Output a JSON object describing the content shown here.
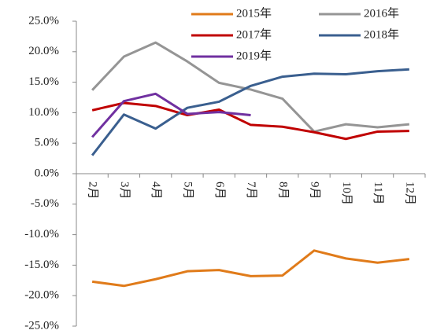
{
  "chart_data": {
    "type": "line",
    "categories": [
      "2月",
      "3月",
      "4月",
      "5月",
      "6月",
      "7月",
      "8月",
      "9月",
      "10月",
      "11月",
      "12月"
    ],
    "series": [
      {
        "name": "2015年",
        "color": "#e07b1a",
        "values": [
          -17.7,
          -18.4,
          -17.3,
          -16.0,
          -15.8,
          -16.8,
          -16.7,
          -12.6,
          -13.9,
          -14.6,
          -14.0
        ]
      },
      {
        "name": "2016年",
        "color": "#959595",
        "values": [
          13.7,
          19.2,
          21.5,
          18.4,
          14.9,
          13.8,
          12.3,
          6.9,
          8.1,
          7.6,
          8.1
        ]
      },
      {
        "name": "2017年",
        "color": "#c00000",
        "values": [
          10.4,
          11.6,
          11.1,
          9.6,
          10.5,
          8.0,
          7.7,
          6.8,
          5.7,
          6.9,
          7.0
        ]
      },
      {
        "name": "2018年",
        "color": "#3a5f8f",
        "values": [
          3.0,
          9.7,
          7.4,
          10.8,
          11.8,
          14.4,
          15.9,
          16.4,
          16.3,
          16.8,
          17.1
        ]
      },
      {
        "name": "2019年",
        "color": "#7030a0",
        "values": [
          6.0,
          11.9,
          13.1,
          9.8,
          10.1,
          9.6,
          null,
          null,
          null,
          null,
          null
        ]
      }
    ],
    "ylim": [
      -25,
      25
    ],
    "yticks": [
      {
        "value": 25,
        "label": "25.0%"
      },
      {
        "value": 20,
        "label": "20.0%"
      },
      {
        "value": 15,
        "label": "15.0%"
      },
      {
        "value": 10,
        "label": "10.0%"
      },
      {
        "value": 5,
        "label": "5.0%"
      },
      {
        "value": 0,
        "label": "0.0%"
      },
      {
        "value": -5,
        "label": "-5.0%"
      },
      {
        "value": -10,
        "label": "-10.0%"
      },
      {
        "value": -15,
        "label": "-15.0%"
      },
      {
        "value": -20,
        "label": "-20.0%"
      },
      {
        "value": -25,
        "label": "-25.0%"
      }
    ],
    "grid": false
  }
}
